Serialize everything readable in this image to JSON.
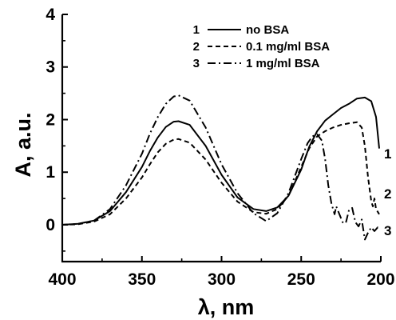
{
  "chart_data": {
    "type": "line",
    "xlabel": "λ, nm",
    "ylabel": "A, a.u.",
    "xlim": [
      400,
      200
    ],
    "ylim": [
      -0.7,
      4
    ],
    "x_reversed": true,
    "x_ticks": [
      400,
      350,
      300,
      250,
      200
    ],
    "y_ticks": [
      0,
      1,
      2,
      3,
      4
    ],
    "legend_position": "top-right",
    "grid": false,
    "series": [
      {
        "id": "1",
        "name": "no BSA",
        "dash": "solid",
        "end_label": "1",
        "points": [
          [
            400,
            0
          ],
          [
            390,
            0.02
          ],
          [
            380,
            0.08
          ],
          [
            370,
            0.26
          ],
          [
            360,
            0.62
          ],
          [
            350,
            1.1
          ],
          [
            345,
            1.4
          ],
          [
            340,
            1.66
          ],
          [
            335,
            1.86
          ],
          [
            330,
            1.96
          ],
          [
            327,
            1.97
          ],
          [
            320,
            1.9
          ],
          [
            310,
            1.5
          ],
          [
            300,
            0.95
          ],
          [
            290,
            0.52
          ],
          [
            280,
            0.3
          ],
          [
            272,
            0.26
          ],
          [
            265,
            0.33
          ],
          [
            258,
            0.55
          ],
          [
            250,
            1.05
          ],
          [
            245,
            1.48
          ],
          [
            240,
            1.78
          ],
          [
            235,
            1.98
          ],
          [
            230,
            2.1
          ],
          [
            225,
            2.22
          ],
          [
            220,
            2.3
          ],
          [
            215,
            2.4
          ],
          [
            210,
            2.42
          ],
          [
            206,
            2.35
          ],
          [
            203,
            2.05
          ],
          [
            201,
            1.45
          ]
        ]
      },
      {
        "id": "2",
        "name": "0.1 mg/ml BSA",
        "dash": "dash",
        "end_label": "2",
        "points": [
          [
            400,
            0
          ],
          [
            390,
            0.01
          ],
          [
            380,
            0.06
          ],
          [
            370,
            0.2
          ],
          [
            360,
            0.5
          ],
          [
            350,
            0.9
          ],
          [
            345,
            1.15
          ],
          [
            340,
            1.38
          ],
          [
            335,
            1.54
          ],
          [
            330,
            1.62
          ],
          [
            327,
            1.63
          ],
          [
            320,
            1.56
          ],
          [
            310,
            1.24
          ],
          [
            300,
            0.8
          ],
          [
            290,
            0.44
          ],
          [
            280,
            0.24
          ],
          [
            272,
            0.21
          ],
          [
            265,
            0.3
          ],
          [
            258,
            0.55
          ],
          [
            250,
            1.1
          ],
          [
            245,
            1.45
          ],
          [
            240,
            1.68
          ],
          [
            235,
            1.78
          ],
          [
            230,
            1.85
          ],
          [
            225,
            1.9
          ],
          [
            220,
            1.93
          ],
          [
            215,
            1.95
          ],
          [
            212,
            1.85
          ],
          [
            210,
            1.5
          ],
          [
            208,
            0.9
          ],
          [
            206,
            0.45
          ],
          [
            205,
            0.35
          ],
          [
            204,
            0.5
          ],
          [
            203,
            0.3
          ],
          [
            201,
            0.2
          ]
        ]
      },
      {
        "id": "3",
        "name": "1 mg/ml BSA",
        "dash": "dashdot",
        "end_label": "3",
        "points": [
          [
            400,
            0
          ],
          [
            390,
            0.02
          ],
          [
            380,
            0.08
          ],
          [
            370,
            0.3
          ],
          [
            360,
            0.75
          ],
          [
            350,
            1.35
          ],
          [
            345,
            1.73
          ],
          [
            340,
            2.05
          ],
          [
            335,
            2.3
          ],
          [
            330,
            2.44
          ],
          [
            327,
            2.46
          ],
          [
            320,
            2.36
          ],
          [
            310,
            1.85
          ],
          [
            300,
            1.15
          ],
          [
            290,
            0.6
          ],
          [
            280,
            0.22
          ],
          [
            272,
            0.07
          ],
          [
            265,
            0.22
          ],
          [
            258,
            0.6
          ],
          [
            250,
            1.25
          ],
          [
            246,
            1.55
          ],
          [
            243,
            1.68
          ],
          [
            240,
            1.72
          ],
          [
            237,
            1.6
          ],
          [
            235,
            1.25
          ],
          [
            233,
            0.75
          ],
          [
            231,
            0.4
          ],
          [
            229,
            0.2
          ],
          [
            228,
            0.35
          ],
          [
            226,
            0.2
          ],
          [
            224,
            0.05
          ],
          [
            222,
            0.03
          ],
          [
            220,
            0.28
          ],
          [
            218,
            0.32
          ],
          [
            216,
            0.05
          ],
          [
            214,
            -0.03
          ],
          [
            212,
            0.1
          ],
          [
            210,
            -0.28
          ],
          [
            208,
            -0.15
          ],
          [
            206,
            -0.05
          ],
          [
            204,
            -0.12
          ],
          [
            202,
            -0.05
          ],
          [
            201,
            -0.1
          ]
        ]
      }
    ]
  }
}
